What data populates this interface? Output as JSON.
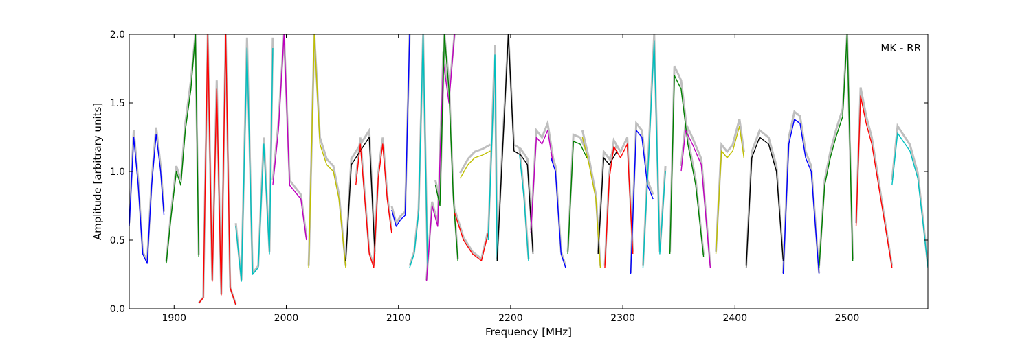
{
  "chart_data": {
    "type": "line",
    "annotation": "MK - RR",
    "xlabel": "Frequency [MHz]",
    "ylabel": "Amplitude [arbitrary units]",
    "xlim": [
      1860,
      2572
    ],
    "ylim": [
      0.0,
      2.0
    ],
    "xticks": [
      1900,
      2000,
      2100,
      2200,
      2300,
      2400,
      2500
    ],
    "xtick_labels": [
      "1900",
      "2000",
      "2100",
      "2200",
      "2300",
      "2400",
      "2500"
    ],
    "yticks": [
      0.0,
      0.5,
      1.0,
      1.5,
      2.0
    ],
    "ytick_labels": [
      "0.0",
      "0.5",
      "1.0",
      "1.5",
      "2.0"
    ],
    "grid": false,
    "legend": "none",
    "envelope_color": "#bfbfbf",
    "series": [
      {
        "color": "#0000ff",
        "x": [
          1860,
          1864,
          1868,
          1872,
          1876,
          1880,
          1884,
          1888,
          1891
        ],
        "y": [
          0.6,
          1.25,
          0.9,
          0.4,
          0.33,
          0.9,
          1.27,
          1.0,
          0.68
        ]
      },
      {
        "color": "#008000",
        "x": [
          1893,
          1897,
          1902,
          1906,
          1910,
          1915,
          1919,
          1922
        ],
        "y": [
          0.33,
          0.65,
          1.0,
          0.9,
          1.3,
          1.6,
          2.0,
          0.38
        ]
      },
      {
        "color": "#ff0000",
        "x": [
          1922,
          1926,
          1930,
          1934,
          1938,
          1942,
          1946,
          1950,
          1955
        ],
        "y": [
          0.04,
          0.08,
          2.0,
          0.2,
          1.6,
          0.1,
          2.0,
          0.15,
          0.03
        ]
      },
      {
        "color": "#00bfbf",
        "x": [
          1955,
          1960,
          1965,
          1970,
          1975,
          1980,
          1985,
          1988
        ],
        "y": [
          0.6,
          0.2,
          1.9,
          0.25,
          0.3,
          1.2,
          0.4,
          1.9
        ]
      },
      {
        "color": "#bf00bf",
        "x": [
          1988,
          1993,
          1998,
          2003,
          2008,
          2013,
          2018
        ],
        "y": [
          0.9,
          1.3,
          2.0,
          0.9,
          0.85,
          0.8,
          0.5
        ]
      },
      {
        "color": "#bfbf00",
        "x": [
          2020,
          2025,
          2030,
          2036,
          2042,
          2047,
          2053
        ],
        "y": [
          0.3,
          2.0,
          1.2,
          1.05,
          1.0,
          0.8,
          0.3
        ]
      },
      {
        "color": "#000000",
        "x": [
          2053,
          2058,
          2062,
          2066,
          2070,
          2074,
          2079
        ],
        "y": [
          0.35,
          1.05,
          1.1,
          1.15,
          1.2,
          1.25,
          0.4
        ]
      },
      {
        "color": "#ff0000",
        "x": [
          2062,
          2066,
          2070,
          2074,
          2078,
          2082,
          2086,
          2090,
          2094
        ],
        "y": [
          0.9,
          1.2,
          0.8,
          0.4,
          0.3,
          0.95,
          1.2,
          0.8,
          0.55
        ]
      },
      {
        "color": "#0000ff",
        "x": [
          2094,
          2098,
          2102,
          2106,
          2110
        ],
        "y": [
          0.72,
          0.6,
          0.65,
          0.68,
          2.0
        ]
      },
      {
        "color": "#00bfbf",
        "x": [
          2110,
          2114,
          2118,
          2122,
          2126
        ],
        "y": [
          0.3,
          0.4,
          0.7,
          2.0,
          0.3
        ]
      },
      {
        "color": "#bf00bf",
        "x": [
          2125,
          2130,
          2135,
          2140,
          2145,
          2150
        ],
        "y": [
          0.2,
          0.75,
          0.6,
          1.8,
          1.5,
          2.0
        ]
      },
      {
        "color": "#008000",
        "x": [
          2133,
          2137,
          2141,
          2145,
          2149,
          2153
        ],
        "y": [
          0.9,
          0.75,
          2.0,
          1.6,
          0.8,
          0.35
        ]
      },
      {
        "color": "#ff0000",
        "x": [
          2150,
          2158,
          2166,
          2174,
          2180
        ],
        "y": [
          0.7,
          0.5,
          0.4,
          0.35,
          0.55
        ]
      },
      {
        "color": "#bfbf00",
        "x": [
          2155,
          2162,
          2168,
          2175,
          2182
        ],
        "y": [
          0.95,
          1.05,
          1.1,
          1.12,
          1.15
        ]
      },
      {
        "color": "#00bfbf",
        "x": [
          2180,
          2183,
          2186,
          2188
        ],
        "y": [
          0.5,
          1.15,
          1.85,
          0.35
        ]
      },
      {
        "color": "#000000",
        "x": [
          2188,
          2193,
          2198,
          2203,
          2209,
          2215,
          2220
        ],
        "y": [
          0.35,
          1.18,
          2.0,
          1.15,
          1.12,
          1.05,
          0.4
        ]
      },
      {
        "color": "#00bfbf",
        "x": [
          2208,
          2212,
          2216
        ],
        "y": [
          1.12,
          0.8,
          0.35
        ]
      },
      {
        "color": "#bf00bf",
        "x": [
          2218,
          2223,
          2228,
          2233,
          2238
        ],
        "y": [
          0.55,
          1.25,
          1.2,
          1.3,
          1.05
        ]
      },
      {
        "color": "#0000ff",
        "x": [
          2236,
          2240,
          2245,
          2249
        ],
        "y": [
          1.1,
          1.0,
          0.4,
          0.3
        ]
      },
      {
        "color": "#008000",
        "x": [
          2251,
          2256,
          2262,
          2268
        ],
        "y": [
          0.4,
          1.22,
          1.2,
          1.1
        ]
      },
      {
        "color": "#bfbf00",
        "x": [
          2264,
          2270,
          2276,
          2280
        ],
        "y": [
          1.25,
          1.05,
          0.8,
          0.3
        ]
      },
      {
        "color": "#000000",
        "x": [
          2278,
          2283,
          2288,
          2295
        ],
        "y": [
          0.4,
          1.1,
          1.05,
          1.15
        ]
      },
      {
        "color": "#ff0000",
        "x": [
          2284,
          2288,
          2292,
          2298,
          2304,
          2309
        ],
        "y": [
          0.3,
          0.95,
          1.18,
          1.1,
          1.2,
          0.4
        ]
      },
      {
        "color": "#0000ff",
        "x": [
          2307,
          2312,
          2317,
          2322,
          2327
        ],
        "y": [
          0.25,
          1.3,
          1.25,
          0.9,
          0.8
        ]
      },
      {
        "color": "#00bfbf",
        "x": [
          2318,
          2323,
          2328,
          2333,
          2338
        ],
        "y": [
          0.3,
          1.1,
          1.95,
          0.4,
          1.0
        ]
      },
      {
        "color": "#008000",
        "x": [
          2342,
          2346,
          2352,
          2358,
          2365,
          2372
        ],
        "y": [
          0.4,
          1.7,
          1.6,
          1.2,
          0.9,
          0.38
        ]
      },
      {
        "color": "#bf00bf",
        "x": [
          2352,
          2356,
          2362,
          2370,
          2378
        ],
        "y": [
          1.0,
          1.3,
          1.2,
          1.05,
          0.3
        ]
      },
      {
        "color": "#bfbf00",
        "x": [
          2383,
          2388,
          2393,
          2398,
          2404,
          2408
        ],
        "y": [
          0.4,
          1.15,
          1.1,
          1.15,
          1.33,
          1.1
        ]
      },
      {
        "color": "#000000",
        "x": [
          2410,
          2415,
          2422,
          2430,
          2437,
          2443
        ],
        "y": [
          0.3,
          1.1,
          1.25,
          1.2,
          1.0,
          0.35
        ]
      },
      {
        "color": "#0000ff",
        "x": [
          2443,
          2448,
          2453,
          2458,
          2463,
          2468,
          2475
        ],
        "y": [
          0.25,
          1.2,
          1.38,
          1.35,
          1.1,
          1.0,
          0.25
        ]
      },
      {
        "color": "#008000",
        "x": [
          2475,
          2480,
          2485,
          2490,
          2496,
          2500,
          2505
        ],
        "y": [
          0.3,
          0.9,
          1.1,
          1.25,
          1.4,
          2.0,
          0.35
        ]
      },
      {
        "color": "#ff0000",
        "x": [
          2508,
          2512,
          2517,
          2522,
          2530,
          2536,
          2540
        ],
        "y": [
          0.6,
          1.55,
          1.35,
          1.2,
          0.8,
          0.5,
          0.3
        ]
      },
      {
        "color": "#00bfbf",
        "x": [
          2540,
          2545,
          2550,
          2556,
          2563,
          2568,
          2572
        ],
        "y": [
          0.9,
          1.28,
          1.22,
          1.15,
          0.95,
          0.6,
          0.3
        ]
      }
    ]
  }
}
